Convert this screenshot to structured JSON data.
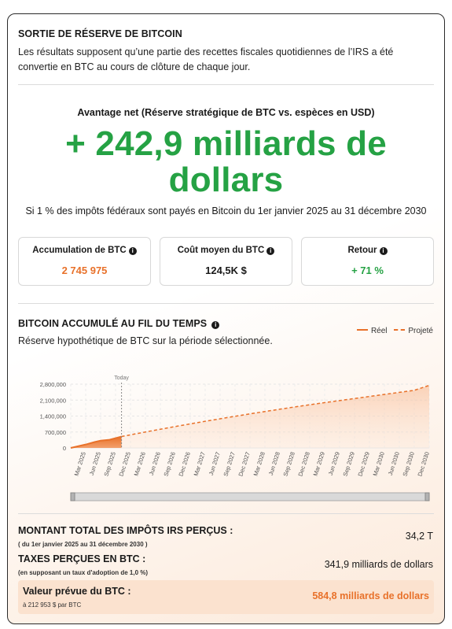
{
  "reserve": {
    "title": "SORTIE DE RÉSERVE DE BITCOIN",
    "description_line1": "Les résultats supposent qu’une partie des recettes fiscales quotidiennes de l’IRS a été",
    "description_line2": "convertie en BTC au cours de clôture de chaque jour."
  },
  "advantage": {
    "label": "Avantage net (Réserve stratégique de BTC vs. espèces en USD)",
    "value_line1": "+ 242,9 milliards de",
    "value_line2": "dollars",
    "note": "Si 1 % des impôts fédéraux sont payés en Bitcoin du 1er janvier 2025 au 31 décembre 2030"
  },
  "stats": [
    {
      "label": "Accumulation de BTC",
      "value": "2 745 975",
      "color": "#e8712a"
    },
    {
      "label": "Coût moyen du BTC",
      "value": "124,5K $",
      "color": "#1a1a1a"
    },
    {
      "label": "Retour",
      "value": "+ 71 %",
      "color": "#25a244"
    }
  ],
  "accum": {
    "title": "BITCOIN ACCUMULÉ AU FIL DU TEMPS",
    "subtitle": "Réserve hypothétique de BTC sur la période sélectionnée.",
    "legend_real": "Réel",
    "legend_projected": "Projeté"
  },
  "chart_data": {
    "type": "area",
    "today_label": "Today",
    "today_index": 4,
    "y_ticks": [
      "0",
      "700,000",
      "1,400,000",
      "2,100,000",
      "2,800,000"
    ],
    "ylim": [
      0,
      2800000
    ],
    "x": [
      "Mar 2025",
      "Jun 2025",
      "Sep 2025",
      "Dec 2025",
      "Mar 2026",
      "Jun 2026",
      "Sep 2026",
      "Dec 2026",
      "Mar 2027",
      "Jun 2027",
      "Sep 2027",
      "Dec 2027",
      "Mar 2028",
      "Jun 2028",
      "Sep 2028",
      "Dec 2028",
      "Mar 2029",
      "Jun 2029",
      "Sep 2029",
      "Dec 2029",
      "Mar 2030",
      "Jun 2030",
      "Sep 2030",
      "Dec 2030"
    ],
    "series": [
      {
        "name": "Réel",
        "x": [
          0,
          0.4,
          1,
          1.6,
          2,
          2.6,
          3,
          3.4
        ],
        "values": [
          0,
          60000,
          150000,
          260000,
          320000,
          360000,
          430000,
          500000
        ]
      },
      {
        "name": "Projeté",
        "x": [
          3.4,
          5,
          7,
          9,
          11,
          13,
          15,
          17,
          19,
          21,
          23,
          24
        ],
        "values": [
          500000,
          700000,
          940000,
          1170000,
          1390000,
          1600000,
          1800000,
          1990000,
          2170000,
          2350000,
          2530000,
          2745975
        ]
      }
    ],
    "grid": true,
    "legend": "top-right"
  },
  "totals": {
    "irs_label": "MONTANT TOTAL DES IMPÔTS IRS PERÇUS :",
    "irs_sub": "( du 1er janvier 2025 au 31 décembre 2030 )",
    "irs_value": "34,2 T",
    "btc_label": "TAXES PERÇUES EN BTC :",
    "btc_sub": "(en supposant un taux d'adoption de 1,0 %)",
    "btc_value": "341,9 milliards de dollars",
    "pred_label": "Valeur prévue du BTC :",
    "pred_sub": "à 212 953 $ par BTC",
    "pred_value": "584,8 milliards de dollars"
  },
  "colors": {
    "accent": "#e8712a",
    "green": "#25a244"
  }
}
